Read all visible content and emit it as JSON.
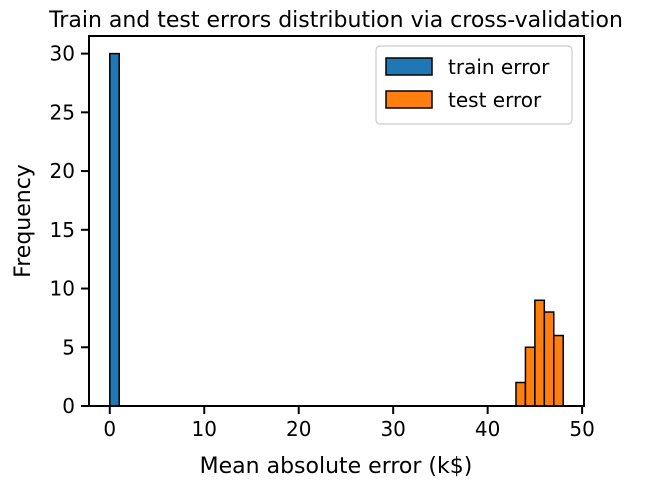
{
  "chart_data": {
    "type": "bar",
    "title": "Train and test errors distribution via cross-validation",
    "xlabel": "Mean absolute error (k$)",
    "ylabel": "Frequency",
    "xlim": [
      -2.2,
      50.2
    ],
    "ylim": [
      0,
      31.5
    ],
    "xticks": [
      0,
      10,
      20,
      30,
      40,
      50
    ],
    "yticks": [
      0,
      5,
      10,
      15,
      20,
      25,
      30
    ],
    "grid": false,
    "legend_position": "top-right",
    "series": [
      {
        "name": "train error",
        "color": "#1f77b4",
        "bins": [
          {
            "x0": 0.0,
            "x1": 1.0,
            "count": 30
          }
        ]
      },
      {
        "name": "test error",
        "color": "#ff7f0e",
        "bins": [
          {
            "x0": 43.0,
            "x1": 44.0,
            "count": 2
          },
          {
            "x0": 44.0,
            "x1": 45.0,
            "count": 5
          },
          {
            "x0": 45.0,
            "x1": 46.0,
            "count": 9
          },
          {
            "x0": 46.0,
            "x1": 47.0,
            "count": 8
          },
          {
            "x0": 47.0,
            "x1": 48.0,
            "count": 6
          }
        ]
      }
    ]
  }
}
